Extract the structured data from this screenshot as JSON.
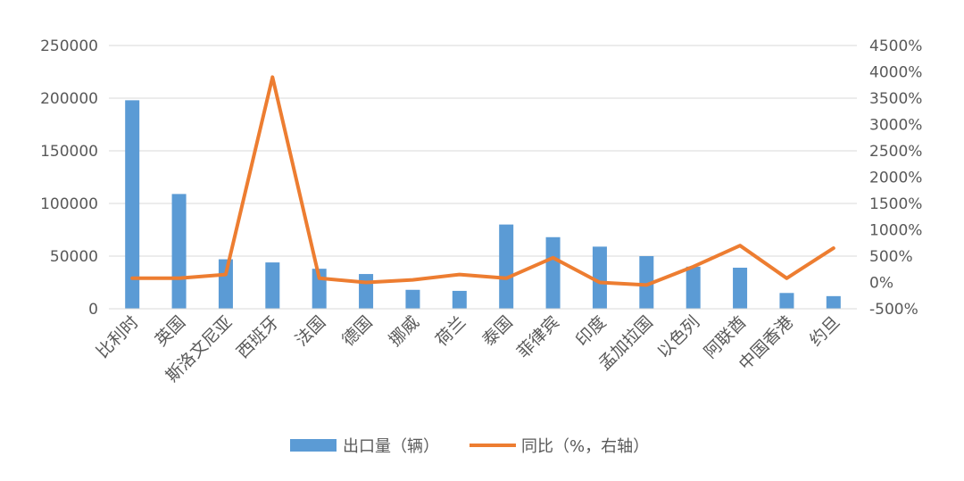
{
  "chart_data": {
    "type": "bar",
    "categories": [
      "比利时",
      "英国",
      "斯洛文尼亚",
      "西班牙",
      "法国",
      "德国",
      "挪威",
      "荷兰",
      "泰国",
      "菲律宾",
      "印度",
      "孟加拉国",
      "以色列",
      "阿联酋",
      "中国香港",
      "约旦"
    ],
    "series": [
      {
        "name": "出口量（辆）",
        "type": "bar",
        "axis": "left",
        "color": "#5B9BD5",
        "values": [
          198000,
          109000,
          47000,
          44000,
          38000,
          33000,
          18000,
          17000,
          80000,
          68000,
          59000,
          50000,
          40000,
          39000,
          15000,
          12000
        ]
      },
      {
        "name": "同比（%，右轴）",
        "type": "line",
        "axis": "right",
        "color": "#ED7D31",
        "values": [
          80,
          80,
          150,
          3900,
          80,
          0,
          50,
          150,
          80,
          470,
          0,
          -50,
          300,
          700,
          80,
          650
        ]
      }
    ],
    "y_left": {
      "min": 0,
      "max": 250000,
      "ticks": [
        "0",
        "50000",
        "100000",
        "150000",
        "200000",
        "250000"
      ]
    },
    "y_right": {
      "min": -500,
      "max": 4500,
      "ticks": [
        "-500%",
        "0%",
        "500%",
        "1000%",
        "1500%",
        "2000%",
        "2500%",
        "3000%",
        "3500%",
        "4000%",
        "4500%"
      ]
    },
    "grid": true,
    "legend": "bottom"
  }
}
